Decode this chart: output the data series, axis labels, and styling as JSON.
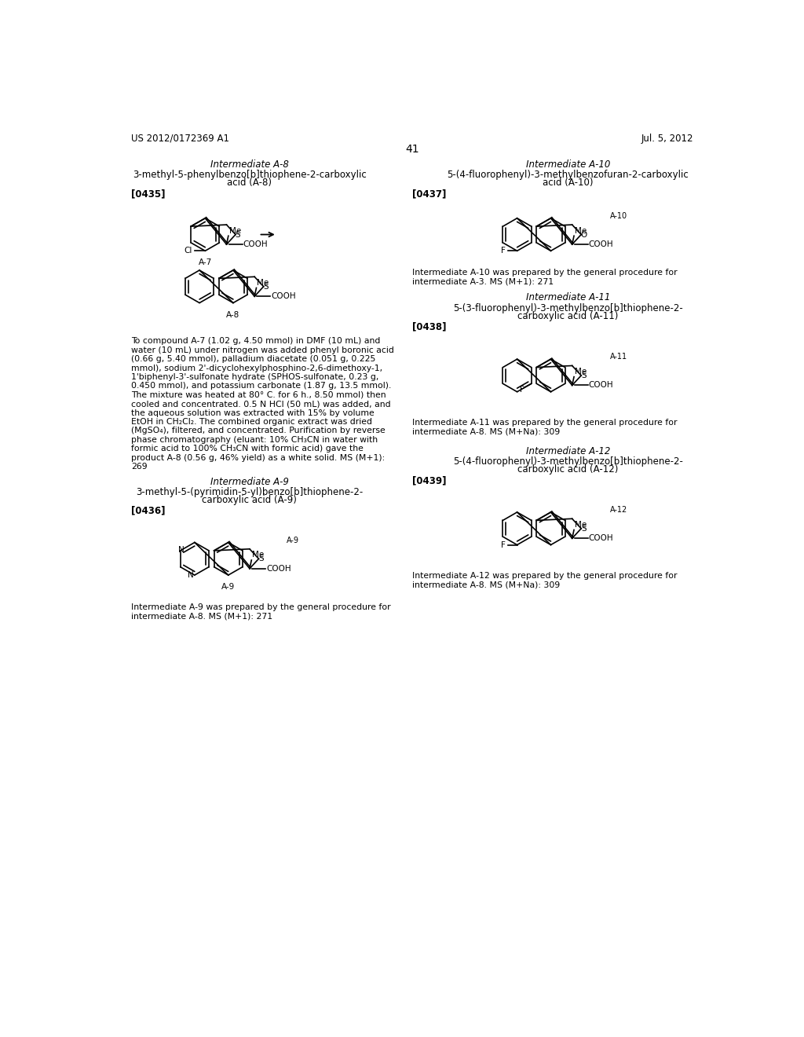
{
  "bg_color": "#ffffff",
  "header_left": "US 2012/0172369 A1",
  "header_right": "Jul. 5, 2012",
  "page_number": "41",
  "left_col": {
    "int_a8_title": "Intermediate A-8",
    "int_a8_name_1": "3-methyl-5-phenylbenzo[b]thiophene-2-carboxylic",
    "int_a8_name_2": "acid (A-8)",
    "bracket_a8": "[0435]",
    "int_a9_title": "Intermediate A-9",
    "int_a9_name_1": "3-methyl-5-(pyrimidin-5-yl)benzo[b]thiophene-2-",
    "int_a9_name_2": "carboxylic acid (A-9)",
    "bracket_a9": "[0436]",
    "int_a9_caption_1": "Intermediate A-9 was prepared by the general procedure for",
    "int_a9_caption_2": "intermediate A-8. MS (M+1): 271",
    "body_text_lines": [
      "To compound A-7 (1.02 g, 4.50 mmol) in DMF (10 mL) and",
      "water (10 mL) under nitrogen was added phenyl boronic acid",
      "(0.66 g, 5.40 mmol), palladium diacetate (0.051 g, 0.225",
      "mmol), sodium 2'-dicyclohexylphosphino-2,6-dimethoxy-1,",
      "1'biphenyl-3'-sulfonate hydrate (SPHOS-sulfonate, 0.23 g,",
      "0.450 mmol), and potassium carbonate (1.87 g, 13.5 mmol).",
      "The mixture was heated at 80° C. for 6 h., 8.50 mmol) then",
      "cooled and concentrated. 0.5 N HCl (50 mL) was added, and",
      "the aqueous solution was extracted with 15% by volume",
      "EtOH in CH₂Cl₂. The combined organic extract was dried",
      "(MgSO₄), filtered, and concentrated. Purification by reverse",
      "phase chromatography (eluant: 10% CH₃CN in water with",
      "formic acid to 100% CH₃CN with formic acid) gave the",
      "product A-8 (0.56 g, 46% yield) as a white solid. MS (M+1):",
      "269"
    ]
  },
  "right_col": {
    "int_a10_title": "Intermediate A-10",
    "int_a10_name_1": "5-(4-fluorophenyl)-3-methylbenzofuran-2-carboxylic",
    "int_a10_name_2": "acid (A-10)",
    "bracket_a10": "[0437]",
    "int_a10_caption_1": "Intermediate A-10 was prepared by the general procedure for",
    "int_a10_caption_2": "intermediate A-3. MS (M+1): 271",
    "int_a11_title": "Intermediate A-11",
    "int_a11_name_1": "5-(3-fluorophenyl)-3-methylbenzo[b]thiophene-2-",
    "int_a11_name_2": "carboxylic acid (A-11)",
    "bracket_a11": "[0438]",
    "int_a11_caption_1": "Intermediate A-11 was prepared by the general procedure for",
    "int_a11_caption_2": "intermediate A-8. MS (M+Na): 309",
    "int_a12_title": "Intermediate A-12",
    "int_a12_name_1": "5-(4-fluorophenyl)-3-methylbenzo[b]thiophene-2-",
    "int_a12_name_2": "carboxylic acid (A-12)",
    "bracket_a12": "[0439]",
    "int_a12_caption_1": "Intermediate A-12 was prepared by the general procedure for",
    "int_a12_caption_2": "intermediate A-8. MS (M+Na): 309"
  }
}
